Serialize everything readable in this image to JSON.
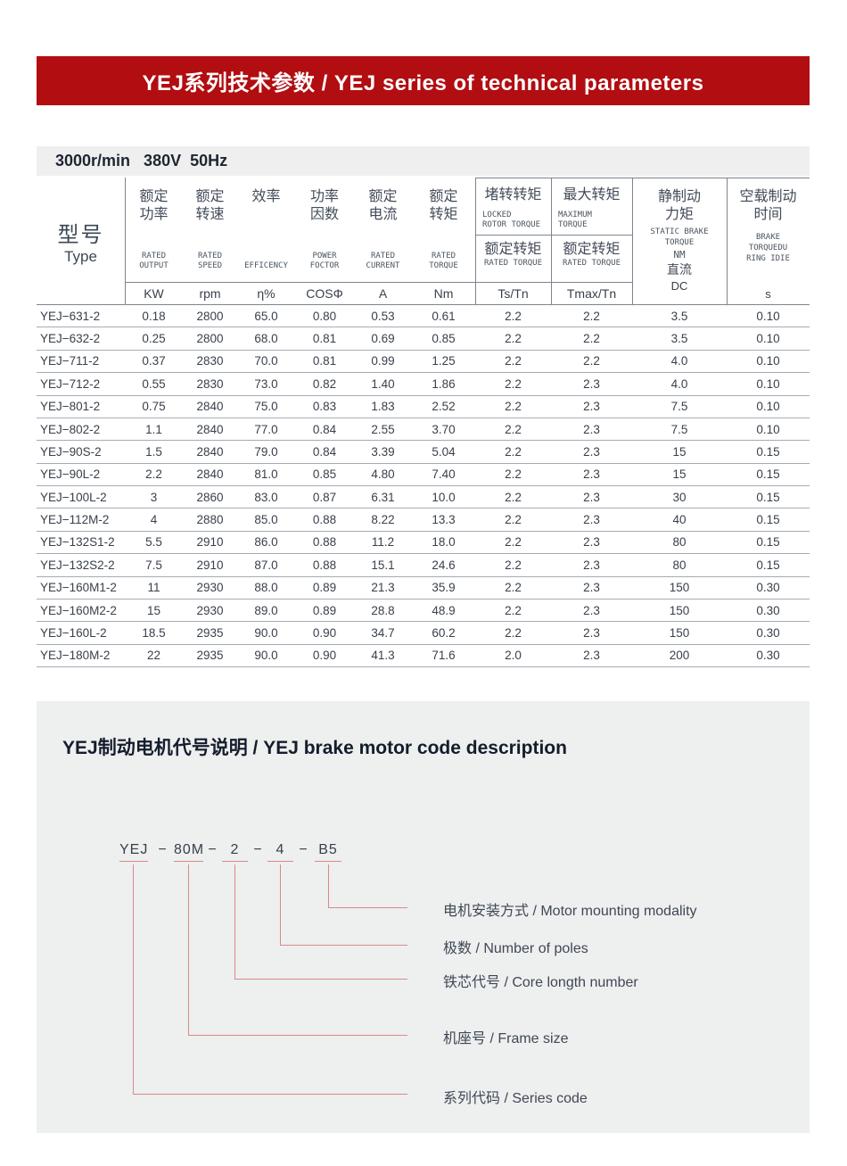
{
  "banner": {
    "title": "YEJ系列技术参数 / YEJ series of technical parameters",
    "bg_color": "#b20d11"
  },
  "spec_bar": {
    "text": "3000r/min   380V  50Hz"
  },
  "table": {
    "type_header": {
      "zh": "型号",
      "en": "Type"
    },
    "simple_columns": [
      {
        "zh1": "额定",
        "zh2": "功率",
        "en1": "RATED",
        "en2": "OUTPUT",
        "unit": "KW"
      },
      {
        "zh1": "额定",
        "zh2": "转速",
        "en1": "RATED",
        "en2": "SPEED",
        "unit": "rpm"
      },
      {
        "zh1": "效率",
        "zh2": "",
        "en1": "EFFICENCY",
        "en2": "",
        "unit": "η%"
      },
      {
        "zh1": "功率",
        "zh2": "因数",
        "en1": "POWER",
        "en2": "FOCTOR",
        "unit": "COSΦ"
      },
      {
        "zh1": "额定",
        "zh2": "电流",
        "en1": "RATED",
        "en2": "CURRENT",
        "unit": "A"
      },
      {
        "zh1": "额定",
        "zh2": "转矩",
        "en1": "RATED",
        "en2": "TORQUE",
        "unit": "Nm"
      }
    ],
    "ratio_columns": [
      {
        "top_zh": "堵转转矩",
        "top_en1": "LOCKED",
        "top_en2": "ROTOR TORQUE",
        "mid_zh": "额定转矩",
        "mid_en": "RATED TORQUE",
        "unit": "Ts/Tn"
      },
      {
        "top_zh": "最大转矩",
        "top_en1": "MAXIMUM",
        "top_en2": "TORQUE",
        "mid_zh": "额定转矩",
        "mid_en": "RATED TORQUE",
        "unit": "Tmax/Tn"
      }
    ],
    "static_brake_column": {
      "zh1": "静制动",
      "zh2": "力矩",
      "en1": "STATIC BRAKE",
      "en2": "TORQUE",
      "en3": "NM",
      "zh3": "直流",
      "unit": "DC"
    },
    "idle_brake_column": {
      "zh1": "空载制动",
      "zh2": "时间",
      "en1": "BRAKE",
      "en2": "TORQUEDU",
      "en3": "RING IDIE",
      "unit": "s"
    },
    "rows": [
      [
        "YEJ−631-2",
        "0.18",
        "2800",
        "65.0",
        "0.80",
        "0.53",
        "0.61",
        "2.2",
        "2.2",
        "3.5",
        "0.10"
      ],
      [
        "YEJ−632-2",
        "0.25",
        "2800",
        "68.0",
        "0.81",
        "0.69",
        "0.85",
        "2.2",
        "2.2",
        "3.5",
        "0.10"
      ],
      [
        "YEJ−711-2",
        "0.37",
        "2830",
        "70.0",
        "0.81",
        "0.99",
        "1.25",
        "2.2",
        "2.2",
        "4.0",
        "0.10"
      ],
      [
        "YEJ−712-2",
        "0.55",
        "2830",
        "73.0",
        "0.82",
        "1.40",
        "1.86",
        "2.2",
        "2.3",
        "4.0",
        "0.10"
      ],
      [
        "YEJ−801-2",
        "0.75",
        "2840",
        "75.0",
        "0.83",
        "1.83",
        "2.52",
        "2.2",
        "2.3",
        "7.5",
        "0.10"
      ],
      [
        "YEJ−802-2",
        "1.1",
        "2840",
        "77.0",
        "0.84",
        "2.55",
        "3.70",
        "2.2",
        "2.3",
        "7.5",
        "0.10"
      ],
      [
        "YEJ−90S-2",
        "1.5",
        "2840",
        "79.0",
        "0.84",
        "3.39",
        "5.04",
        "2.2",
        "2.3",
        "15",
        "0.15"
      ],
      [
        "YEJ−90L-2",
        "2.2",
        "2840",
        "81.0",
        "0.85",
        "4.80",
        "7.40",
        "2.2",
        "2.3",
        "15",
        "0.15"
      ],
      [
        "YEJ−100L-2",
        "3",
        "2860",
        "83.0",
        "0.87",
        "6.31",
        "10.0",
        "2.2",
        "2.3",
        "30",
        "0.15"
      ],
      [
        "YEJ−112M-2",
        "4",
        "2880",
        "85.0",
        "0.88",
        "8.22",
        "13.3",
        "2.2",
        "2.3",
        "40",
        "0.15"
      ],
      [
        "YEJ−132S1-2",
        "5.5",
        "2910",
        "86.0",
        "0.88",
        "11.2",
        "18.0",
        "2.2",
        "2.3",
        "80",
        "0.15"
      ],
      [
        "YEJ−132S2-2",
        "7.5",
        "2910",
        "87.0",
        "0.88",
        "15.1",
        "24.6",
        "2.2",
        "2.3",
        "80",
        "0.15"
      ],
      [
        "YEJ−160M1-2",
        "11",
        "2930",
        "88.0",
        "0.89",
        "21.3",
        "35.9",
        "2.2",
        "2.3",
        "150",
        "0.30"
      ],
      [
        "YEJ−160M2-2",
        "15",
        "2930",
        "89.0",
        "0.89",
        "28.8",
        "48.9",
        "2.2",
        "2.3",
        "150",
        "0.30"
      ],
      [
        "YEJ−160L-2",
        "18.5",
        "2935",
        "90.0",
        "0.90",
        "34.7",
        "60.2",
        "2.2",
        "2.3",
        "150",
        "0.30"
      ],
      [
        "YEJ−180M-2",
        "22",
        "2935",
        "90.0",
        "0.90",
        "41.3",
        "71.6",
        "2.0",
        "2.3",
        "200",
        "0.30"
      ]
    ]
  },
  "code_section": {
    "title": "YEJ制动电机代号说明 / YEJ brake motor code description",
    "parts": [
      "YEJ",
      "80M",
      "2",
      "4",
      "B5"
    ],
    "dash": "−",
    "labels": [
      "电机安装方式 / Motor mounting modality",
      "极数 / Number of poles",
      "铁芯代号 / Core longth number",
      "机座号 / Frame size",
      "系列代码 / Series code"
    ],
    "line_color": "#d88a8a"
  }
}
